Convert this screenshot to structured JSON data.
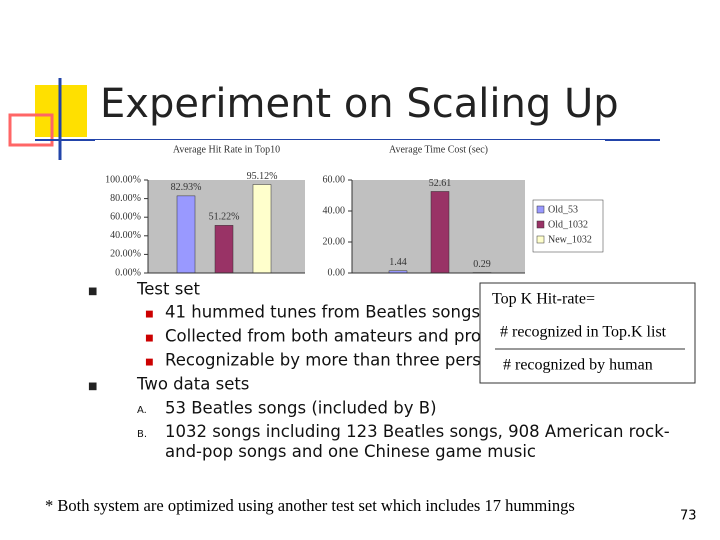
{
  "title": "Experiment on Scaling Up",
  "chart_data": [
    {
      "type": "bar",
      "title": "Average Hit Rate in Top10",
      "values": [
        82.93,
        51.22,
        95.12
      ],
      "value_labels": [
        "82.93%",
        "51.22%",
        "95.12%"
      ],
      "colors": [
        "#9999ff",
        "#993366",
        "#ffffcc"
      ],
      "ylim": [
        0,
        100
      ],
      "yticks": [
        {
          "value": 0,
          "label": "0.00%"
        },
        {
          "value": 20,
          "label": "20.00%"
        },
        {
          "value": 40,
          "label": "40.00%"
        },
        {
          "value": 60,
          "label": "60.00%"
        },
        {
          "value": 80,
          "label": "80.00%"
        },
        {
          "value": 100,
          "label": "100.00%"
        }
      ]
    },
    {
      "type": "bar",
      "title": "Average Time Cost (sec)",
      "values": [
        1.44,
        52.61,
        0.29
      ],
      "colors": [
        "#9999ff",
        "#993366",
        "#ffffcc"
      ],
      "legend": [
        "Old_53",
        "Old_1032",
        "New_1032"
      ],
      "ylim": [
        0,
        60
      ],
      "yticks": [
        {
          "value": 0,
          "label": "0.00"
        },
        {
          "value": 20,
          "label": "20.00"
        },
        {
          "value": 40,
          "label": "40.00"
        },
        {
          "value": 60,
          "label": "60.00"
        }
      ]
    }
  ],
  "bullets": [
    {
      "text": "Test set",
      "items": [
        "41 hummed tunes from Beatles songs",
        "Collected from both amateurs and professionals",
        "Recognizable by more than three persons"
      ]
    },
    {
      "text": "Two data sets",
      "items": [
        {
          "marker": "A.",
          "text": "53 Beatles songs (included by B)"
        },
        {
          "marker": "B.",
          "text": "1032 songs including 123 Beatles songs, 908 American rock-and-pop songs and one Chinese game music"
        }
      ]
    }
  ],
  "formula": {
    "left": "Top K Hit-rate=",
    "numerator": "# recognized in Top.K list",
    "denominator": "# recognized by human"
  },
  "footnote": "* Both system are optimized using another test set which includes 17 hummings",
  "page_number": "73"
}
